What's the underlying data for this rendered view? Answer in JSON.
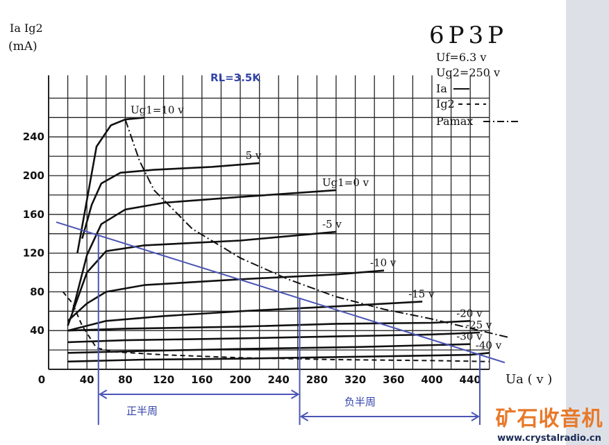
{
  "chart_data": {
    "type": "line",
    "title": "6P3P",
    "conditions": [
      "Uf=6.3 v",
      "Ug2=250 v"
    ],
    "legend": [
      {
        "name": "Ia",
        "style": "solid"
      },
      {
        "name": "Ig2",
        "style": "dashed"
      },
      {
        "name": "Pamax",
        "style": "dash-dot"
      }
    ],
    "ylabel": "Ia Ig2",
    "yunit": "(mA)",
    "xlabel": "Ua ( v )",
    "xlim": [
      0,
      460
    ],
    "ylim": [
      0,
      300
    ],
    "x_ticks": [
      "0",
      "40",
      "80",
      "120",
      "160",
      "200",
      "240",
      "280",
      "320",
      "360",
      "400",
      "440"
    ],
    "y_ticks": [
      "40",
      "80",
      "120",
      "160",
      "200",
      "240"
    ],
    "series": [
      {
        "name": "Ug1=10 v",
        "values": [
          [
            30,
            120
          ],
          [
            40,
            175
          ],
          [
            50,
            230
          ],
          [
            65,
            252
          ],
          [
            80,
            258
          ],
          [
            100,
            260
          ]
        ]
      },
      {
        "name": "5 v",
        "values": [
          [
            35,
            135
          ],
          [
            45,
            170
          ],
          [
            55,
            192
          ],
          [
            75,
            203
          ],
          [
            110,
            206
          ],
          [
            170,
            209
          ],
          [
            220,
            213
          ]
        ]
      },
      {
        "name": "Ug1=0 v",
        "values": [
          [
            25,
            60
          ],
          [
            40,
            118
          ],
          [
            55,
            150
          ],
          [
            80,
            165
          ],
          [
            120,
            172
          ],
          [
            200,
            178
          ],
          [
            300,
            185
          ]
        ]
      },
      {
        "name": "-5 v",
        "values": [
          [
            20,
            45
          ],
          [
            40,
            100
          ],
          [
            60,
            122
          ],
          [
            100,
            128
          ],
          [
            200,
            133
          ],
          [
            300,
            142
          ]
        ]
      },
      {
        "name": "-10 v",
        "values": [
          [
            20,
            50
          ],
          [
            40,
            68
          ],
          [
            60,
            80
          ],
          [
            100,
            87
          ],
          [
            200,
            93
          ],
          [
            300,
            98
          ],
          [
            350,
            102
          ]
        ]
      },
      {
        "name": "-15 v",
        "values": [
          [
            20,
            40
          ],
          [
            60,
            50
          ],
          [
            120,
            55
          ],
          [
            200,
            60
          ],
          [
            300,
            65
          ],
          [
            390,
            70
          ]
        ]
      },
      {
        "name": "-20 v",
        "values": [
          [
            20,
            40
          ],
          [
            80,
            42
          ],
          [
            200,
            44
          ],
          [
            300,
            47
          ],
          [
            400,
            48
          ],
          [
            440,
            50
          ]
        ]
      },
      {
        "name": "-25 v",
        "values": [
          [
            20,
            28
          ],
          [
            80,
            30
          ],
          [
            200,
            32
          ],
          [
            300,
            34
          ],
          [
            400,
            36
          ],
          [
            450,
            38
          ]
        ]
      },
      {
        "name": "-30 v",
        "values": [
          [
            20,
            17
          ],
          [
            100,
            19
          ],
          [
            200,
            21
          ],
          [
            320,
            23
          ],
          [
            440,
            26
          ]
        ]
      },
      {
        "name": "-40 v",
        "values": [
          [
            20,
            8
          ],
          [
            100,
            10
          ],
          [
            200,
            11
          ],
          [
            320,
            13
          ],
          [
            440,
            15
          ],
          [
            460,
            17
          ]
        ]
      }
    ],
    "ig2_curve": [
      [
        15,
        80
      ],
      [
        25,
        68
      ],
      [
        35,
        45
      ],
      [
        50,
        22
      ],
      [
        70,
        18
      ],
      [
        120,
        15
      ],
      [
        200,
        12
      ],
      [
        300,
        10
      ],
      [
        400,
        9
      ],
      [
        460,
        8
      ]
    ],
    "pamax_curve": [
      [
        80,
        258
      ],
      [
        95,
        215
      ],
      [
        110,
        185
      ],
      [
        150,
        145
      ],
      [
        200,
        115
      ],
      [
        250,
        93
      ],
      [
        300,
        75
      ],
      [
        350,
        62
      ],
      [
        400,
        52
      ],
      [
        450,
        40
      ],
      [
        480,
        33
      ]
    ],
    "load_line": {
      "label": "RL=3.5K",
      "from": [
        8,
        152
      ],
      "to": [
        476,
        7
      ]
    },
    "markers": {
      "q_point_x": 262,
      "min_x": 52,
      "max_x": 450
    },
    "half_cycle_labels": [
      "正半周",
      "负半周"
    ]
  },
  "watermark": {
    "main": "矿石收音机",
    "url": "www.crystalradio.cn"
  }
}
